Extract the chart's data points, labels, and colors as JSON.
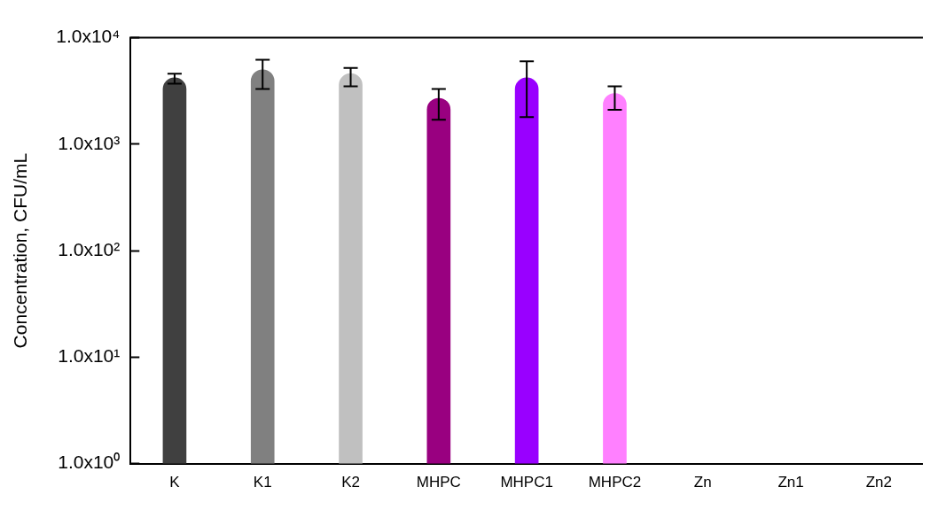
{
  "chart_data": {
    "type": "bar",
    "ylabel": "Concentration, CFU/mL",
    "categories": [
      "K",
      "K1",
      "K2",
      "MHPC",
      "MHPC1",
      "MHPC2",
      "Zn",
      "Zn1",
      "Zn2"
    ],
    "values": [
      4200,
      5000,
      4600,
      2700,
      4200,
      3000,
      null,
      null,
      null
    ],
    "colors": [
      "#404040",
      "#808080",
      "#c0c0c0",
      "#990080",
      "#9900ff",
      "#ff80ff",
      "#000000",
      "#000000",
      "#000000"
    ],
    "errors": [
      [
        3700,
        4600
      ],
      [
        3300,
        6200
      ],
      [
        3500,
        5200
      ],
      [
        1700,
        3300
      ],
      [
        1800,
        6000
      ],
      [
        2100,
        3500
      ],
      null,
      null,
      null
    ],
    "log": true,
    "ylim": [
      1,
      10000
    ],
    "yticks": [
      {
        "value": 1,
        "label": "1.0x10⁰"
      },
      {
        "value": 10,
        "label": "1.0x10¹"
      },
      {
        "value": 100,
        "label": "1.0x10²"
      },
      {
        "value": 1000,
        "label": "1.0x10³"
      },
      {
        "value": 10000,
        "label": "1.0x10⁴"
      }
    ],
    "grid": false
  }
}
